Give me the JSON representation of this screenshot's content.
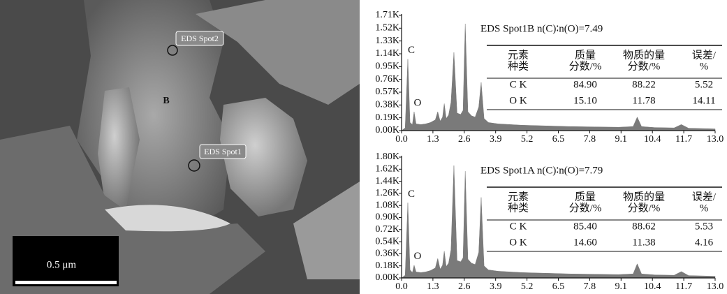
{
  "image": {
    "labels": [
      "EDS Spot2",
      "EDS Spot1",
      "B"
    ],
    "scale_bar": "0.5 μm"
  },
  "chart_data": [
    {
      "type": "area",
      "title": "EDS Spot1B n(C)∶n(O)=7.49",
      "color": "#7a7a7a",
      "annotations": [
        "C",
        "O"
      ],
      "x": [
        0,
        0.15,
        0.26,
        0.35,
        0.45,
        0.52,
        0.6,
        0.8,
        1.0,
        1.2,
        1.4,
        1.5,
        1.6,
        1.7,
        1.77,
        1.85,
        1.95,
        2.05,
        2.17,
        2.3,
        2.45,
        2.55,
        2.64,
        2.75,
        2.9,
        3.05,
        3.2,
        3.3,
        3.42,
        3.6,
        4.0,
        4.5,
        5.0,
        6.0,
        7.0,
        8.0,
        9.0,
        9.6,
        9.77,
        9.95,
        10.5,
        11.3,
        11.6,
        11.9,
        12.5,
        13.0
      ],
      "values": [
        0,
        40,
        1060,
        120,
        90,
        280,
        100,
        90,
        100,
        120,
        160,
        280,
        140,
        200,
        400,
        180,
        230,
        420,
        1160,
        260,
        240,
        300,
        1585,
        280,
        220,
        200,
        350,
        715,
        180,
        120,
        100,
        90,
        80,
        70,
        60,
        55,
        50,
        60,
        200,
        60,
        45,
        40,
        90,
        35,
        30,
        25
      ],
      "xlim": [
        0,
        13
      ],
      "ylim": [
        0,
        1710
      ],
      "xticks": [
        {
          "value": 0,
          "label": "0.0"
        },
        1.3,
        2.6,
        3.9,
        5.2,
        6.5,
        7.8,
        9.1,
        10.4,
        11.7,
        {
          "value": 13,
          "label": "13.0"
        }
      ],
      "yticks": [
        {
          "value": 0,
          "label": "0.00K"
        },
        {
          "value": 190,
          "label": "0.19K"
        },
        {
          "value": 380,
          "label": "0.38K"
        },
        {
          "value": 570,
          "label": "0.57K"
        },
        {
          "value": 760,
          "label": "0.76K"
        },
        {
          "value": 950,
          "label": "0.95K"
        },
        {
          "value": 1140,
          "label": "1.14K"
        },
        {
          "value": 1330,
          "label": "1.33K"
        },
        {
          "value": 1520,
          "label": "1.52K"
        },
        {
          "value": 1710,
          "label": "1.71K"
        }
      ],
      "table": {
        "header": [
          [
            "元素",
            "种类"
          ],
          [
            "质量",
            "分数/%"
          ],
          [
            "物质的量",
            "分数/%"
          ],
          [
            "误差/",
            "%"
          ]
        ],
        "rows": [
          [
            "C K",
            "84.90",
            "88.22",
            "5.52"
          ],
          [
            "O K",
            "15.10",
            "11.78",
            "14.11"
          ]
        ]
      }
    },
    {
      "type": "area",
      "title": "EDS Spot1A n(C)∶n(O)=7.79",
      "color": "#7a7a7a",
      "annotations": [
        "C",
        "O"
      ],
      "x": [
        0,
        0.15,
        0.26,
        0.35,
        0.45,
        0.52,
        0.6,
        0.8,
        1.0,
        1.2,
        1.4,
        1.5,
        1.6,
        1.7,
        1.77,
        1.85,
        1.95,
        2.05,
        2.17,
        2.3,
        2.45,
        2.55,
        2.64,
        2.75,
        2.9,
        3.05,
        3.2,
        3.3,
        3.42,
        3.6,
        4.0,
        4.5,
        5.0,
        6.0,
        7.0,
        8.0,
        9.0,
        9.6,
        9.77,
        9.95,
        10.5,
        11.3,
        11.6,
        11.9,
        12.5,
        13.0
      ],
      "values": [
        0,
        40,
        1120,
        120,
        80,
        190,
        90,
        80,
        90,
        110,
        150,
        290,
        130,
        190,
        400,
        170,
        220,
        420,
        1675,
        260,
        240,
        300,
        1590,
        280,
        220,
        200,
        380,
        1200,
        180,
        120,
        100,
        90,
        80,
        70,
        60,
        55,
        50,
        60,
        210,
        60,
        45,
        40,
        95,
        35,
        30,
        25
      ],
      "xlim": [
        0,
        13
      ],
      "ylim": [
        0,
        1800
      ],
      "xticks": [
        {
          "value": 0,
          "label": "0.0"
        },
        1.3,
        2.6,
        3.9,
        5.2,
        6.5,
        7.8,
        9.1,
        10.4,
        11.7,
        {
          "value": 13,
          "label": "13.0"
        }
      ],
      "yticks": [
        {
          "value": 0,
          "label": "0.00K"
        },
        {
          "value": 180,
          "label": "0.18K"
        },
        {
          "value": 360,
          "label": "0.36K"
        },
        {
          "value": 540,
          "label": "0.54K"
        },
        {
          "value": 720,
          "label": "0.72K"
        },
        {
          "value": 900,
          "label": "0.90K"
        },
        {
          "value": 1080,
          "label": "1.08K"
        },
        {
          "value": 1260,
          "label": "1.26K"
        },
        {
          "value": 1440,
          "label": "1.44K"
        },
        {
          "value": 1620,
          "label": "1.62K"
        },
        {
          "value": 1800,
          "label": "1.80K"
        }
      ],
      "table": {
        "header": [
          [
            "元素",
            "种类"
          ],
          [
            "质量",
            "分数/%"
          ],
          [
            "物质的量",
            "分数/%"
          ],
          [
            "误差/",
            "%"
          ]
        ],
        "rows": [
          [
            "C K",
            "85.40",
            "88.62",
            "5.53"
          ],
          [
            "O K",
            "14.60",
            "11.38",
            "4.16"
          ]
        ]
      }
    }
  ]
}
